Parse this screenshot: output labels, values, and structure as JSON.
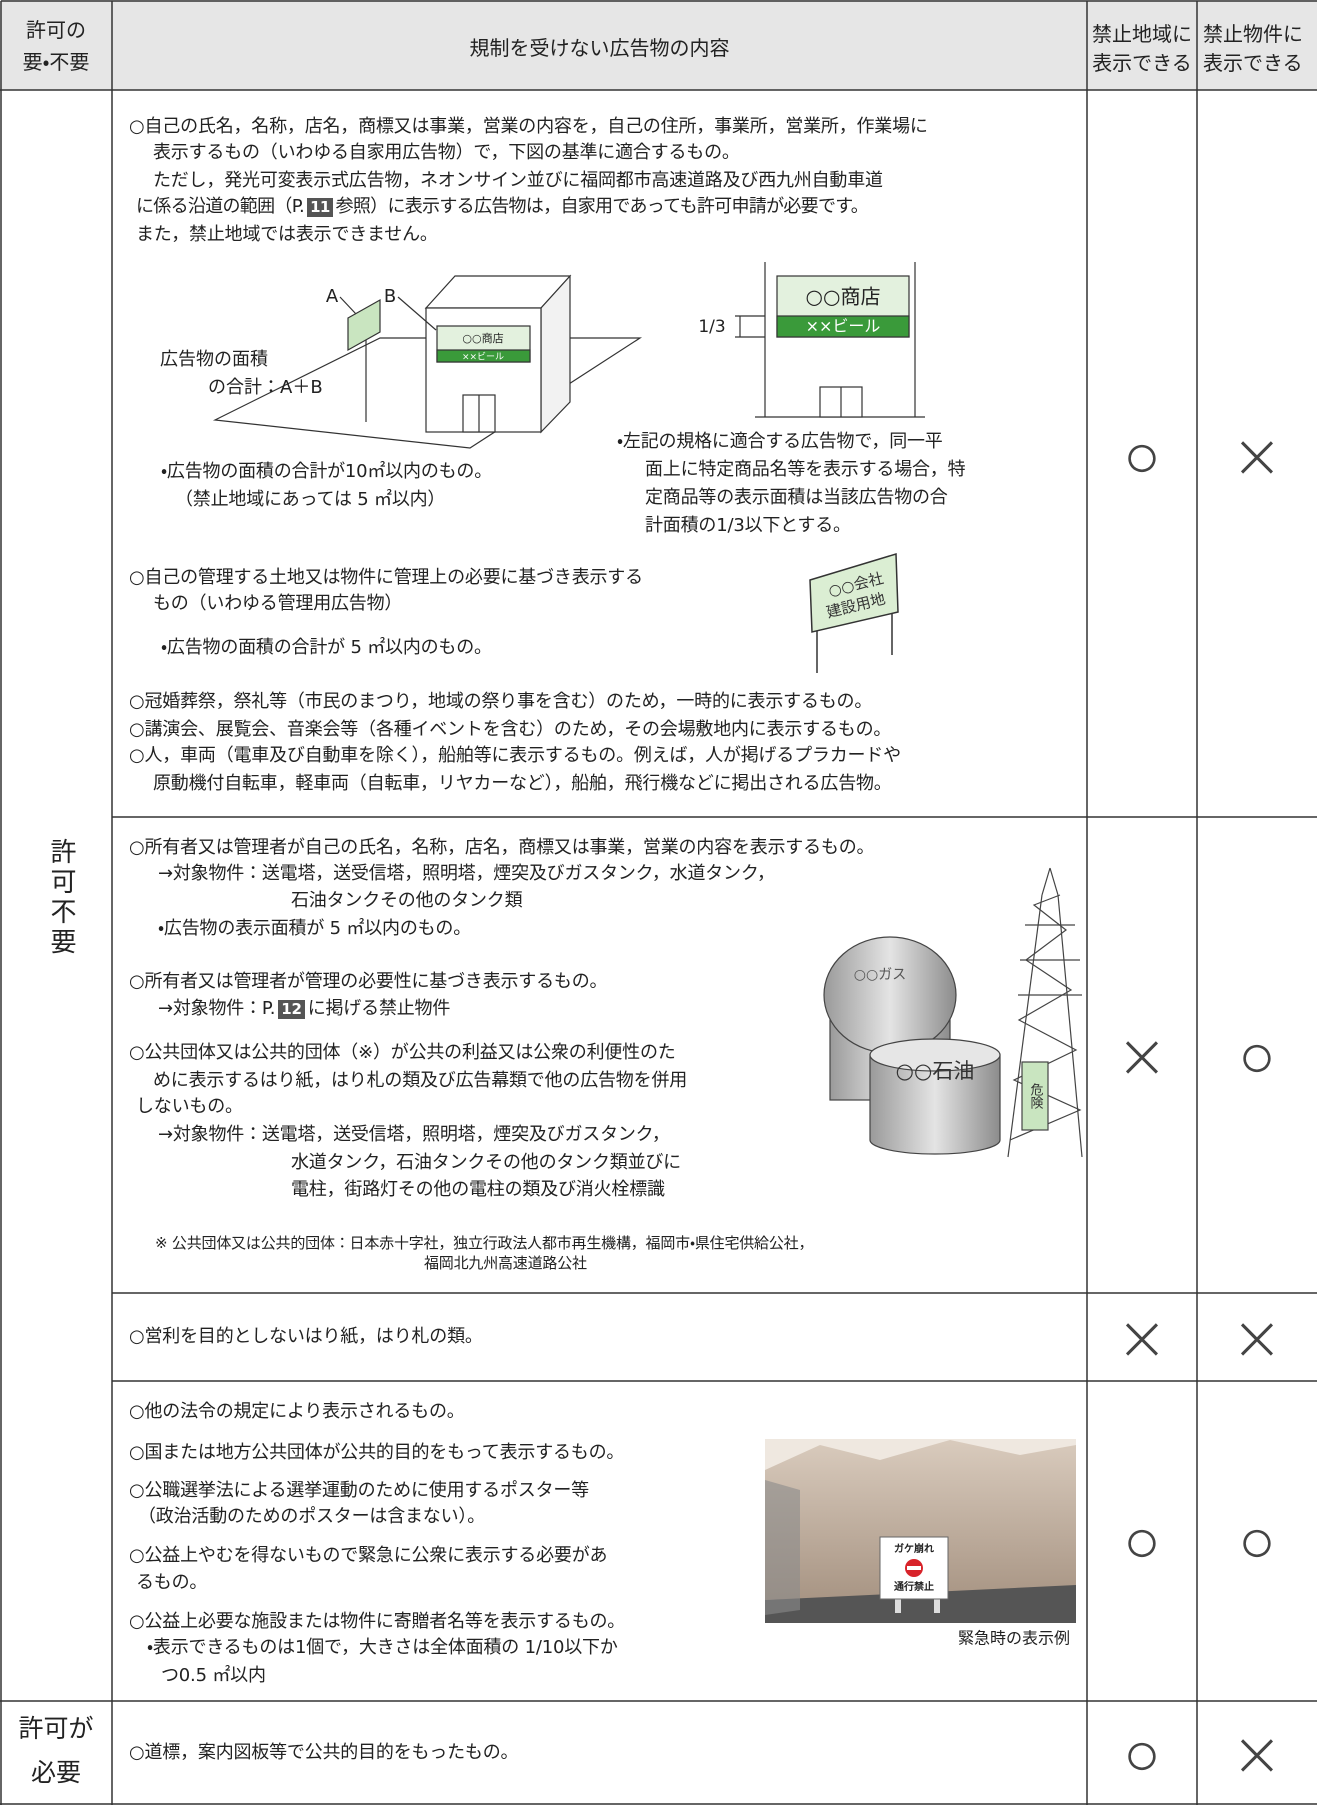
{
  "header": {
    "permission": [
      "許可の",
      "要・不要"
    ],
    "content": "規制を受けない広告物の内容",
    "prohibited_area": [
      "禁止地域に",
      "表示できる"
    ],
    "prohibited_object": [
      "禁止物件に",
      "表示できる"
    ]
  },
  "groups": {
    "not_required": "許可不要",
    "required": [
      "許可が",
      "必要"
    ]
  },
  "rows": [
    {
      "lines": [
        "○自己の氏名，名称，店名，商標又は事業，営業の内容を，自己の住所，事業所，営業所，作業場に",
        "表示するもの（いわゆる自家用広告物）で，下図の基準に適合するもの。",
        "ただし，発光可変表示式広告物，ネオンサイン並びに福岡都市高速道路及び西九州自動車道",
        {
          "before": "に係る沿道の範囲（P.",
          "page": "11",
          "after": "参照）に表示する広告物は，自家用であっても許可申請が必要です。"
        },
        "また，禁止地域では表示できません。",
        "・広告物の面積の合計が10㎡以内のもの。",
        "（禁止地域にあっては 5 ㎡以内）",
        "・左記の規格に適合する広告物で，同一平",
        "面上に特定商品名等を表示する場合，特",
        "定商品等の表示面積は当該広告物の合",
        "計面積の1/3以下とする。",
        "○自己の管理する土地又は物件に管理上の必要に基づき表示する",
        "もの（いわゆる管理用広告物）",
        "・広告物の面積の合計が 5 ㎡以内のもの。",
        "○冠婚葬祭，祭礼等（市民のまつり，地域の祭り事を含む）のため，一時的に表示するもの。",
        "○講演会、展覧会、音楽会等（各種イベントを含む）のため，その会場敷地内に表示するもの。",
        "○人，車両（電車及び自動車を除く），船舶等に表示するもの。例えば，人が掲げるプラカードや",
        "原動機付自転車，軽車両（自転車，リヤカーなど），船舶，飛行機などに掲出される広告物。"
      ],
      "figure": {
        "label_a": "A",
        "label_b": "B",
        "shop": "○○商店",
        "beer": "××ビール",
        "area_caption": [
          "広告物の面積",
          "の合計：A＋B"
        ],
        "ratio": "1/3",
        "sign": [
          "○○会社",
          "建設用地"
        ]
      },
      "area": "○",
      "object": "×"
    },
    {
      "lines": [
        "○所有者又は管理者が自己の氏名，名称，店名，商標又は事業，営業の内容を表示するもの。",
        "→対象物件：送電塔，送受信塔，照明塔，煙突及びガスタンク，水道タンク，",
        "石油タンクその他のタンク類",
        "・広告物の表示面積が 5 ㎡以内のもの。",
        "○所有者又は管理者が管理の必要性に基づき表示するもの。",
        {
          "before": "→対象物件：P.",
          "page": "12",
          "after": "に掲げる禁止物件"
        },
        "○公共団体又は公共的団体（※）が公共の利益又は公衆の利便性のた",
        "めに表示するはり紙，はり札の類及び広告幕類で他の広告物を併用",
        "しないもの。",
        "→対象物件：送電塔，送受信塔，照明塔，煙突及びガスタンク，",
        "水道タンク，石油タンクその他のタンク類並びに",
        "電柱，街路灯その他の電柱の類及び消火栓標識",
        "※ 公共団体又は公共的団体：日本赤十字社，独立行政法人都市再生機構，福岡市・県住宅供給公社，",
        "福岡北九州高速道路公社"
      ],
      "figure": {
        "gas": "○○ガス",
        "oil": "○○石油",
        "danger": "危険"
      },
      "area": "×",
      "object": "○"
    },
    {
      "lines": [
        "○営利を目的としないはり紙，はり札の類。"
      ],
      "area": "×",
      "object": "×"
    },
    {
      "lines": [
        "○他の法令の規定により表示されるもの。",
        "○国または地方公共団体が公共的目的をもって表示するもの。",
        "○公職選挙法による選挙運動のために使用するポスター等",
        "（政治活動のためのポスターは含まない）。",
        "○公益上やむを得ないもので緊急に公衆に表示する必要があ",
        "るもの。",
        "○公益上必要な施設または物件に寄贈者名等を表示するもの。",
        "・表示できるものは1個で，大きさは全体面積の 1/10以下か",
        "つ0.5 ㎡以内"
      ],
      "figure": {
        "sign": [
          "ガケ崩れ",
          "通行禁止"
        ],
        "caption": "緊急時の表示例"
      },
      "area": "○",
      "object": "○"
    },
    {
      "lines": [
        "○道標，案内図板等で公共的目的をもったもの。"
      ],
      "area": "○",
      "object": "×"
    }
  ]
}
